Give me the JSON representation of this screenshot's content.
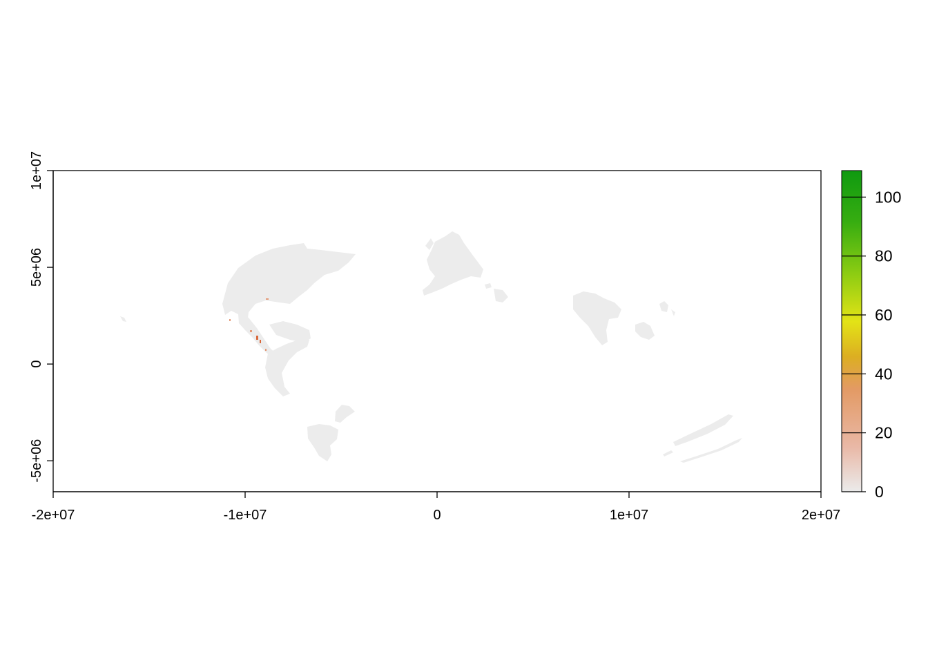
{
  "map": {
    "x_ticks": [
      {
        "value": -20000000,
        "label": "-2e+07"
      },
      {
        "value": -10000000,
        "label": "-1e+07"
      },
      {
        "value": 0,
        "label": "0"
      },
      {
        "value": 10000000,
        "label": "1e+07"
      },
      {
        "value": 20000000,
        "label": "2e+07"
      }
    ],
    "y_ticks": [
      {
        "value": -5000000,
        "label": "-5e+06"
      },
      {
        "value": 0,
        "label": "0"
      },
      {
        "value": 5000000,
        "label": "5e+06"
      },
      {
        "value": 10000000,
        "label": "1e+07"
      }
    ],
    "x_range": [
      -20000000,
      20000000
    ],
    "y_range": [
      -6600000,
      10000000
    ],
    "land_color": "#ececec",
    "highlight_color": "#d9683b"
  },
  "legend": {
    "ticks": [
      {
        "value": 0,
        "label": "0"
      },
      {
        "value": 20,
        "label": "20"
      },
      {
        "value": 40,
        "label": "40"
      },
      {
        "value": 60,
        "label": "60"
      },
      {
        "value": 80,
        "label": "80"
      },
      {
        "value": 100,
        "label": "100"
      }
    ],
    "range": [
      0,
      109
    ],
    "colors": [
      "#ebebeb",
      "#e9b8a6",
      "#e39a64",
      "#dcae22",
      "#e3e316",
      "#8ccc12",
      "#37ad11",
      "#0f9a10"
    ]
  }
}
